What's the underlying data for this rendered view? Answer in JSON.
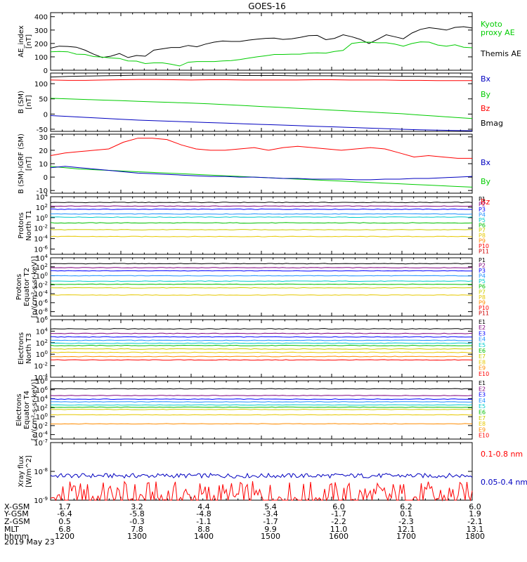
{
  "title": "GOES-16",
  "colors": {
    "p": [
      "#000000",
      "#800080",
      "#0000ff",
      "#1e90ff",
      "#00cccc",
      "#00c000",
      "#cccc00",
      "#e6c800",
      "#ff8c00",
      "#ff0000",
      "#cc0000"
    ],
    "e": [
      "#000000",
      "#800080",
      "#0000ff",
      "#1e90ff",
      "#00cccc",
      "#00c000",
      "#cccc00",
      "#e6c800",
      "#ff8c00",
      "#ff0000",
      "#cc0000"
    ]
  },
  "chart_data": {
    "type": "line",
    "x_range": [
      "1200",
      "1800"
    ],
    "x_tick_labels": [
      "1200",
      "1300",
      "1400",
      "1500",
      "1600",
      "1700",
      "1800"
    ],
    "panels": [
      {
        "id": "ae",
        "ylabel": [
          "AE_index",
          "[nT]"
        ],
        "scale": "linear",
        "ylim": [
          0,
          430
        ],
        "ticks": [
          0,
          100,
          200,
          300,
          400
        ],
        "tick_labels": [
          "0",
          "100",
          "200",
          "300",
          "400"
        ],
        "series": [
          {
            "name": "Themis AE",
            "color": "#000000",
            "values": [
              165,
              180,
              178,
              172,
              150,
              120,
              95,
              105,
              125,
              95,
              110,
              105,
              150,
              160,
              170,
              170,
              185,
              175,
              195,
              210,
              218,
              215,
              215,
              225,
              232,
              238,
              240,
              230,
              235,
              245,
              258,
              260,
              228,
              238,
              265,
              250,
              230,
              200,
              230,
              265,
              250,
              235,
              278,
              305,
              318,
              310,
              300,
              320,
              325,
              315
            ]
          },
          {
            "name": "Kyoto proxy AE",
            "color": "#00cc00",
            "values": [
              138,
              140,
              138,
              120,
              118,
              102,
              98,
              92,
              88,
              70,
              68,
              50,
              55,
              55,
              45,
              32,
              60,
              65,
              65,
              65,
              70,
              72,
              80,
              90,
              100,
              108,
              118,
              118,
              120,
              120,
              128,
              130,
              128,
              140,
              148,
              200,
              208,
              210,
              205,
              205,
              195,
              180,
              200,
              212,
              210,
              188,
              180,
              190,
              172,
              168
            ]
          }
        ],
        "labels": [
          {
            "text": [
              "Kyoto",
              "proxy AE"
            ],
            "color": "#00cc00"
          },
          {
            "text": [
              "Themis AE"
            ],
            "color": "#000000"
          }
        ]
      },
      {
        "id": "bsm",
        "ylabel": [
          "B (SM)",
          "[nT]"
        ],
        "scale": "linear",
        "ylim": [
          -57,
          135
        ],
        "ticks": [
          -50,
          0,
          50,
          100
        ],
        "tick_labels": [
          "-50",
          "0",
          "50",
          "100"
        ],
        "series": [
          {
            "name": "Bmag",
            "color": "#000000",
            "values": [
              122,
              124,
              125,
              126,
              127,
              128,
              128,
              128,
              128,
              128,
              128,
              127,
              127,
              127,
              126,
              126,
              126,
              125,
              125,
              124,
              124,
              124,
              123,
              123,
              122
            ]
          },
          {
            "name": "Bz",
            "color": "#ff0000",
            "values": [
              112,
              111,
              111,
              112,
              113,
              114,
              114,
              113,
              112,
              113,
              113,
              112,
              112,
              112,
              112,
              113,
              113,
              112,
              112,
              112,
              111,
              111,
              110,
              110,
              110
            ]
          },
          {
            "name": "By",
            "color": "#00cc00",
            "values": [
              52,
              50,
              48,
              46,
              44,
              42,
              40,
              38,
              36,
              34,
              31,
              28,
              25,
              22,
              19,
              16,
              13,
              10,
              7,
              4,
              1,
              -3,
              -7,
              -11,
              -15
            ]
          },
          {
            "name": "Bx",
            "color": "#0000c0",
            "values": [
              -5,
              -8,
              -11,
              -14,
              -17,
              -20,
              -22,
              -24,
              -26,
              -28,
              -30,
              -32,
              -34,
              -36,
              -38,
              -40,
              -42,
              -44,
              -46,
              -48,
              -50,
              -52,
              -53,
              -54,
              -55
            ]
          }
        ],
        "labels": [
          {
            "text": [
              "Bx"
            ],
            "color": "#0000c0"
          },
          {
            "text": [
              "By"
            ],
            "color": "#00cc00"
          },
          {
            "text": [
              "Bz"
            ],
            "color": "#ff0000"
          },
          {
            "text": [
              "Bmag"
            ],
            "color": "#000000"
          }
        ]
      },
      {
        "id": "bigrf",
        "ylabel": [
          "B (SM)-IGRF (SM)",
          "[nT]"
        ],
        "scale": "linear",
        "ylim": [
          -12,
          32
        ],
        "ticks": [
          -10,
          0,
          10,
          20,
          30
        ],
        "tick_labels": [
          "-10",
          "0",
          "10",
          "20",
          "30"
        ],
        "series": [
          {
            "name": "Bz",
            "color": "#ff0000",
            "values": [
              16,
              18,
              19,
              20,
              21,
              26,
              29,
              29,
              28,
              24,
              21,
              20,
              20,
              21,
              22,
              20,
              22,
              23,
              22,
              21,
              20,
              21,
              22,
              21,
              18,
              15,
              16,
              15,
              14,
              14
            ]
          },
          {
            "name": "By",
            "color": "#00cc00",
            "values": [
              8,
              7,
              6,
              5.5,
              5,
              4.5,
              4,
              3.5,
              3,
              2.5,
              2,
              1.5,
              1,
              0.5,
              0,
              -0.5,
              -1,
              -1.5,
              -2,
              -2.5,
              -3,
              -3.5,
              -4,
              -4.5,
              -5,
              -5.5,
              -6,
              -6.5,
              -7,
              -7.5
            ]
          },
          {
            "name": "Bx",
            "color": "#0000c0",
            "values": [
              7,
              8,
              7,
              6,
              5,
              4,
              3,
              2.5,
              2,
              1.5,
              1,
              0.5,
              0.5,
              0,
              0,
              -0.5,
              -1,
              -1,
              -1.5,
              -1.5,
              -1.5,
              -2,
              -2,
              -1.5,
              -1.5,
              -1,
              -1,
              -0.5,
              0,
              0.5
            ]
          }
        ],
        "labels": [
          {
            "text": [
              "Bx"
            ],
            "color": "#0000c0"
          },
          {
            "text": [
              "By"
            ],
            "color": "#00cc00"
          },
          {
            "text": [
              "Bz"
            ],
            "color": "#ff0000"
          }
        ]
      },
      {
        "id": "pn",
        "ylabel": [
          "Protons",
          "North T1"
        ],
        "scale": "log",
        "ylim": [
          -7,
          4
        ],
        "ticks": [
          4,
          2,
          0,
          -2,
          -4,
          -6
        ],
        "tick_labels": [
          "10^4",
          "10^2",
          "10^0",
          "10^-2",
          "10^-4",
          "10^-6"
        ],
        "series": [
          {
            "name": "P1",
            "level": 2.9,
            "color_ref": "p.0"
          },
          {
            "name": "P2",
            "level": 2.2,
            "color_ref": "p.1"
          },
          {
            "name": "P3",
            "level": 1.6,
            "color_ref": "p.2"
          },
          {
            "name": "P4",
            "level": 0.7,
            "color_ref": "p.3"
          },
          {
            "name": "P5",
            "level": 0.1,
            "color_ref": "p.4"
          },
          {
            "name": "P6",
            "level": -1.0,
            "color_ref": "p.5"
          },
          {
            "name": "P7",
            "level": -2.3,
            "color_ref": "p.6"
          },
          {
            "name": "P8",
            "level": -3.6,
            "color_ref": "p.7"
          },
          {
            "name": "P9",
            "level": null,
            "color_ref": "p.8"
          },
          {
            "name": "P10",
            "level": null,
            "color_ref": "p.9"
          },
          {
            "name": "P11",
            "level": null,
            "color_ref": "p.10"
          }
        ]
      },
      {
        "id": "pe",
        "ylabel": [
          "Protons",
          "Equator T2",
          "[p/(cm²-s-sr-keV)]"
        ],
        "scale": "log",
        "ylim": [
          -9,
          4
        ],
        "ticks": [
          4,
          2,
          0,
          -2,
          -4,
          -6,
          -8
        ],
        "tick_labels": [
          "10^4",
          "10^2",
          "10^0",
          "10^-2",
          "10^-4",
          "10^-6",
          "10^-8"
        ],
        "series": [
          {
            "name": "P1",
            "level": 2.7,
            "color_ref": "p.0"
          },
          {
            "name": "P2",
            "level": 1.8,
            "color_ref": "p.1"
          },
          {
            "name": "P3",
            "level": 1.1,
            "color_ref": "p.2"
          },
          {
            "name": "P4",
            "level": 0.0,
            "color_ref": "p.3"
          },
          {
            "name": "P5",
            "level": -1.2,
            "color_ref": "p.4"
          },
          {
            "name": "P6",
            "level": -1.9,
            "color_ref": "p.5"
          },
          {
            "name": "P7",
            "level": -2.7,
            "color_ref": "p.6"
          },
          {
            "name": "P8",
            "level": -4.3,
            "color_ref": "p.7"
          },
          {
            "name": "P9",
            "level": null,
            "color_ref": "p.8"
          },
          {
            "name": "P10",
            "level": null,
            "color_ref": "p.9"
          },
          {
            "name": "P11",
            "level": null,
            "color_ref": "p.10"
          }
        ]
      },
      {
        "id": "en",
        "ylabel": [
          "Electrons",
          "North T3"
        ],
        "scale": "log",
        "ylim": [
          -4,
          6
        ],
        "ticks": [
          6,
          4,
          2,
          0,
          -2,
          -4
        ],
        "tick_labels": [
          "10^6",
          "10^4",
          "10^2",
          "10^0",
          "10^-2",
          "10^-4"
        ],
        "series": [
          {
            "name": "E1",
            "level": 4.4,
            "color_ref": "e.0"
          },
          {
            "name": "E2",
            "level": 3.6,
            "color_ref": "e.1"
          },
          {
            "name": "E3",
            "level": 3.0,
            "color_ref": "e.2"
          },
          {
            "name": "E4",
            "level": 2.4,
            "color_ref": "e.3"
          },
          {
            "name": "E5",
            "level": 1.9,
            "color_ref": "e.4"
          },
          {
            "name": "E6",
            "level": 1.5,
            "color_ref": "e.5"
          },
          {
            "name": "E7",
            "level": 0.9,
            "color_ref": "e.6"
          },
          {
            "name": "E8",
            "level": 0.3,
            "color_ref": "e.7"
          },
          {
            "name": "E9",
            "level": -0.4,
            "color_ref": "e.8"
          },
          {
            "name": "E10",
            "level": -1.0,
            "color_ref": "e.9"
          }
        ]
      },
      {
        "id": "ee",
        "ylabel": [
          "Electrons",
          "Equator T4",
          "[e/(cm²-s-sr-keV)]"
        ],
        "scale": "log",
        "ylim": [
          -5,
          8
        ],
        "ticks": [
          8,
          6,
          4,
          2,
          0,
          -2,
          -4
        ],
        "tick_labels": [
          "10^8",
          "10^6",
          "10^4",
          "10^2",
          "10^0",
          "10^-2",
          "10^-4"
        ],
        "series": [
          {
            "name": "E1",
            "level": 6.2,
            "color_ref": "e.0"
          },
          {
            "name": "E2",
            "level": 4.7,
            "color_ref": "e.1"
          },
          {
            "name": "E3",
            "level": 3.9,
            "color_ref": "e.2"
          },
          {
            "name": "E4",
            "level": 3.3,
            "color_ref": "e.3"
          },
          {
            "name": "E5",
            "level": 2.6,
            "color_ref": "e.4"
          },
          {
            "name": "E6",
            "level": 2.1,
            "color_ref": "e.5"
          },
          {
            "name": "E7",
            "level": 1.6,
            "color_ref": "e.6"
          },
          {
            "name": "E8",
            "level": 0.4,
            "color_ref": "e.7"
          },
          {
            "name": "E9",
            "level": -1.6,
            "color_ref": "e.8"
          },
          {
            "name": "E10",
            "level": null,
            "color_ref": "e.9"
          }
        ]
      },
      {
        "id": "xray",
        "ylabel": [
          "Xray flux",
          "[W/m^2]"
        ],
        "scale": "log",
        "ylim": [
          -9,
          -7
        ],
        "ticks": [
          -7,
          -8,
          -9
        ],
        "tick_labels": [
          "10^-7",
          "10^-8",
          "10^-9"
        ],
        "series": [
          {
            "name": "0.1-0.8 nm",
            "color": "#ff0000",
            "level": -9.0
          },
          {
            "name": "0.05-0.4 nm",
            "color": "#0000c0",
            "level": -8.15
          }
        ],
        "labels": [
          {
            "text": [
              "0.1-0.8 nm"
            ],
            "color": "#ff0000"
          },
          {
            "text": [
              "0.05-0.4 nm"
            ],
            "color": "#0000c0"
          }
        ]
      }
    ]
  },
  "ephemeris": {
    "rows": [
      {
        "label": "X-GSM",
        "values": [
          "1.7",
          "3.2",
          "4.4",
          "5.4",
          "6.0",
          "6.2",
          "6.0"
        ]
      },
      {
        "label": "Y-GSM",
        "values": [
          "-6.4",
          "-5.8",
          "-4.8",
          "-3.4",
          "-1.7",
          "0.1",
          "1.9"
        ]
      },
      {
        "label": "Z-GSM",
        "values": [
          "0.5",
          "-0.3",
          "-1.1",
          "-1.7",
          "-2.2",
          "-2.3",
          "-2.1"
        ]
      },
      {
        "label": "MLT",
        "values": [
          "6.8",
          "7.8",
          "8.8",
          "9.9",
          "11.0",
          "12.1",
          "13.1"
        ]
      },
      {
        "label": "hhmm",
        "values": [
          "1200",
          "1300",
          "1400",
          "1500",
          "1600",
          "1700",
          "1800"
        ]
      }
    ],
    "date": "2019 May 23"
  }
}
